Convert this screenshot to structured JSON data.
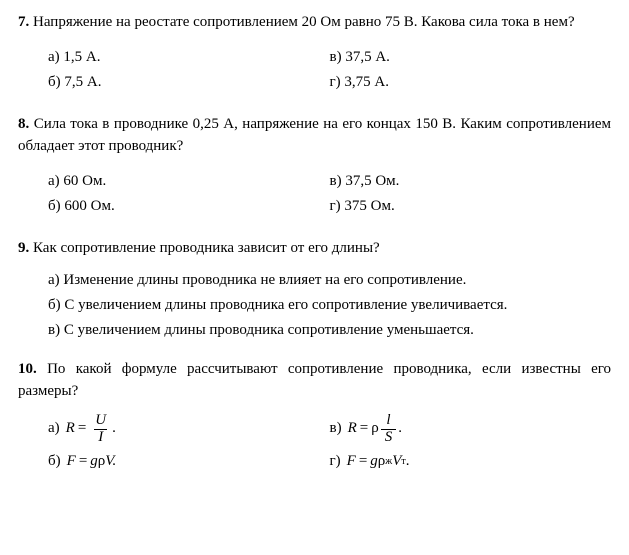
{
  "q7": {
    "num": "7.",
    "text": "Напряжение на реостате сопротивлением 20 Ом равно 75 В. Какова сила тока в нем?",
    "opts": {
      "a": "а) 1,5 А.",
      "b": "б) 7,5 А.",
      "v": "в) 37,5 А.",
      "g": "г) 3,75 А."
    }
  },
  "q8": {
    "num": "8.",
    "text": "Сила тока в проводнике 0,25 А, напряжение на его концах 150 В. Каким сопротивлением обладает этот проводник?",
    "opts": {
      "a": "а) 60 Ом.",
      "b": "б) 600 Ом.",
      "v": "в) 37,5 Ом.",
      "g": "г) 375 Ом."
    }
  },
  "q9": {
    "num": "9.",
    "text": "Как сопротивление проводника зависит от его длины?",
    "opts": {
      "a": "а) Изменение длины проводника не влияет на его сопротивление.",
      "b": "б) С увеличением длины проводника его сопротивление увеличивается.",
      "v": "в) С увеличением длины проводника сопротивление уменьшается."
    }
  },
  "q10": {
    "num": "10.",
    "text": "По какой формуле рассчитывают сопротивление проводника, если известны его размеры?",
    "letters": {
      "a": "а)",
      "b": "б)",
      "v": "в)",
      "g": "г)"
    },
    "formulas": {
      "a": {
        "lhs": "R",
        "eq": "=",
        "num": "U",
        "den": "I",
        "tail": "."
      },
      "b": {
        "lhs": "F",
        "eq": "=",
        "rhs_pre": "g",
        "rhs_sym": "ρ",
        "rhs_post": "V.",
        "no_frac": true
      },
      "v": {
        "lhs": "R",
        "eq": "=",
        "pre": "ρ",
        "num": "l",
        "den": "S",
        "tail": "."
      },
      "g": {
        "lhs": "F",
        "eq": "=",
        "rhs_pre": "g",
        "rhs_sym": "ρ",
        "sub": "ж",
        "rhs_v": "V",
        "sub2": "т",
        "tail": ".",
        "no_frac": true
      }
    }
  }
}
